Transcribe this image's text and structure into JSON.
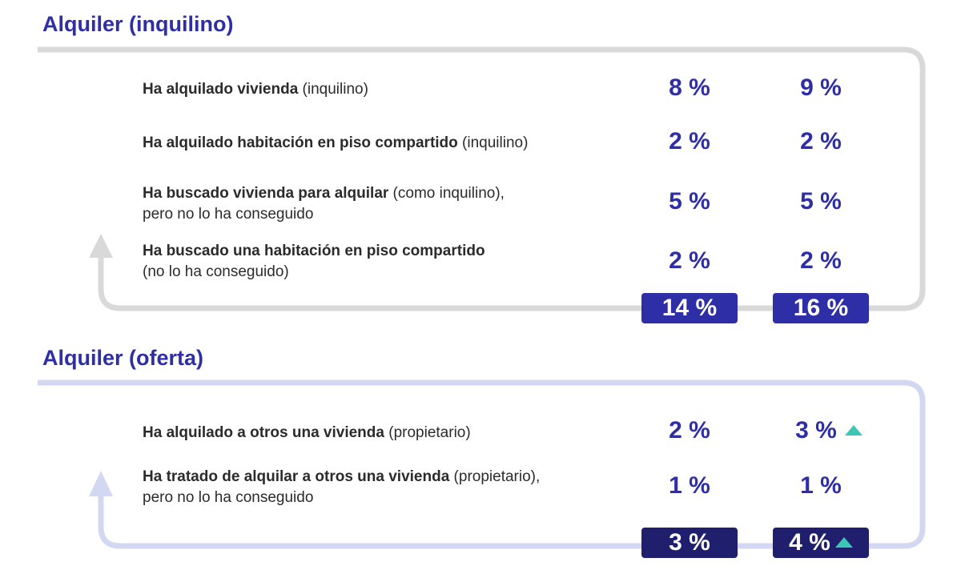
{
  "sections": [
    {
      "title": "Alquiler (inquilino)",
      "frame_color": "#d9d9d9",
      "rows": [
        {
          "bold": "Ha alquilado vivienda",
          "normal": " (inquilino)",
          "line2": "",
          "v1": "8 %",
          "v2": "9 %"
        },
        {
          "bold": "Ha alquilado habitación en piso compartido",
          "normal": " (inquilino)",
          "line2": "",
          "v1": "2 %",
          "v2": "2 %"
        },
        {
          "bold": "Ha buscado vivienda para alquilar",
          "normal": " (como inquilino),",
          "line2": "pero no lo ha conseguido",
          "v1": "5 %",
          "v2": "5 %"
        },
        {
          "bold": "Ha buscado una habitación en piso compartido",
          "normal": "",
          "line2": "(no lo ha conseguido)",
          "v1": "2 %",
          "v2": "2 %"
        }
      ],
      "totals": [
        "14 %",
        "16 %"
      ]
    },
    {
      "title": "Alquiler (oferta)",
      "frame_color": "#d3d8f2",
      "rows": [
        {
          "bold": "Ha alquilado a otros una vivienda",
          "normal": " (propietario)",
          "line2": "",
          "v1": "2 %",
          "v2": "3 %",
          "v2_trend": "up"
        },
        {
          "bold": "Ha tratado de alquilar a otros una vivienda",
          "normal": " (propietario),",
          "line2": "pero no lo ha conseguido",
          "v1": "1 %",
          "v2": "1 %"
        }
      ],
      "totals": [
        "3 %",
        "4 %"
      ],
      "total2_trend": "up"
    }
  ],
  "colors": {
    "accent": "#2e2ea6",
    "total_dark": "#1f1f6e",
    "trend_up": "#3cc7b5",
    "text": "#2b2b2b"
  }
}
